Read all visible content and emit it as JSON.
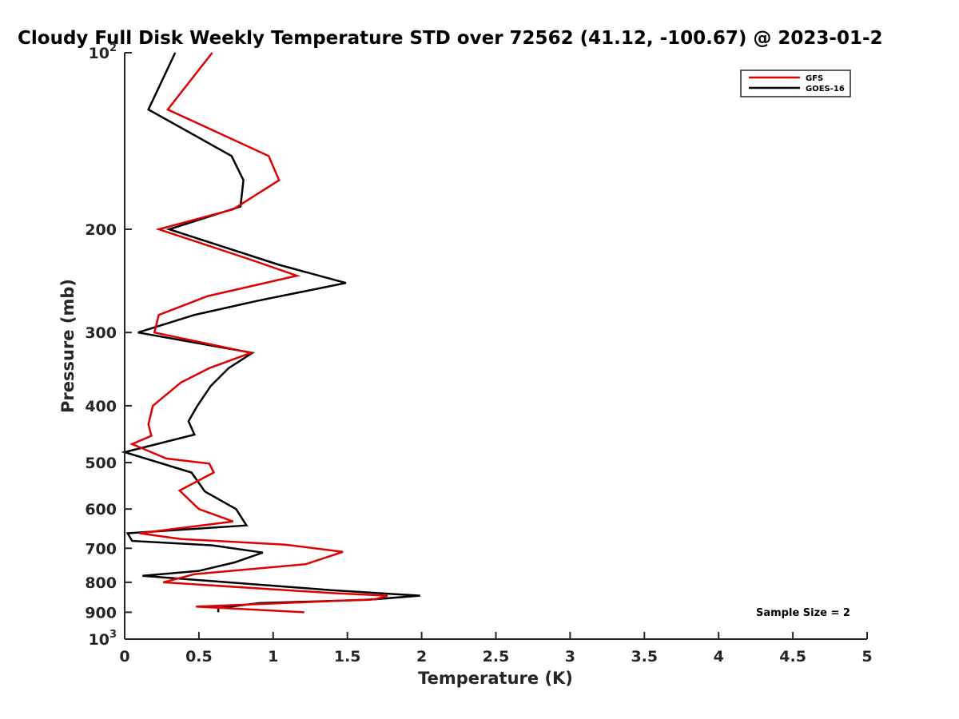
{
  "chart_data": {
    "type": "line",
    "title": "Cloudy Full Disk Weekly Temperature STD over 72562 (41.12, -100.67) @ 2023-01-2",
    "xlabel": "Temperature (K)",
    "ylabel": "Pressure (mb)",
    "xlim": [
      0,
      5
    ],
    "ylim": [
      100,
      1000
    ],
    "yscale": "log",
    "y_reversed": true,
    "x_ticks": [
      "0",
      "0.5",
      "1",
      "1.5",
      "2",
      "2.5",
      "3",
      "3.5",
      "4",
      "4.5",
      "5"
    ],
    "y_ticks": [
      {
        "value": 100,
        "base": "10",
        "exp": "2"
      },
      {
        "value": 200,
        "label": "200"
      },
      {
        "value": 300,
        "label": "300"
      },
      {
        "value": 400,
        "label": "400"
      },
      {
        "value": 500,
        "label": "500"
      },
      {
        "value": 600,
        "label": "600"
      },
      {
        "value": 700,
        "label": "700"
      },
      {
        "value": 800,
        "label": "800"
      },
      {
        "value": 900,
        "label": "900"
      },
      {
        "value": 1000,
        "base": "10",
        "exp": "3"
      }
    ],
    "grid": false,
    "legend_position": "top-right",
    "annotation": "Sample Size = 2",
    "series": [
      {
        "name": "GFS",
        "color": "#dd0000",
        "points": [
          [
            0.59,
            100
          ],
          [
            0.29,
            125
          ],
          [
            0.97,
            150
          ],
          [
            1.04,
            165
          ],
          [
            0.73,
            185
          ],
          [
            0.23,
            200
          ],
          [
            0.84,
            225
          ],
          [
            1.16,
            240
          ],
          [
            0.56,
            260
          ],
          [
            0.23,
            280
          ],
          [
            0.2,
            300
          ],
          [
            0.85,
            325
          ],
          [
            0.57,
            345
          ],
          [
            0.38,
            365
          ],
          [
            0.19,
            400
          ],
          [
            0.16,
            430
          ],
          [
            0.18,
            450
          ],
          [
            0.05,
            465
          ],
          [
            0.28,
            492
          ],
          [
            0.57,
            502
          ],
          [
            0.6,
            520
          ],
          [
            0.37,
            558
          ],
          [
            0.5,
            600
          ],
          [
            0.73,
            630
          ],
          [
            0.1,
            660
          ],
          [
            0.38,
            675
          ],
          [
            1.08,
            690
          ],
          [
            1.47,
            710
          ],
          [
            1.22,
            745
          ],
          [
            0.47,
            775
          ],
          [
            0.26,
            800
          ],
          [
            1.41,
            835
          ],
          [
            1.77,
            843
          ],
          [
            1.69,
            855
          ],
          [
            0.48,
            880
          ],
          [
            1.21,
            900
          ]
        ]
      },
      {
        "name": "GOES-16",
        "color": "#000000",
        "points": [
          [
            0.34,
            100
          ],
          [
            0.16,
            125
          ],
          [
            0.72,
            150
          ],
          [
            0.8,
            165
          ],
          [
            0.78,
            183
          ],
          [
            0.3,
            200
          ],
          [
            1.04,
            230
          ],
          [
            1.49,
            247
          ],
          [
            0.89,
            265
          ],
          [
            0.47,
            280
          ],
          [
            0.09,
            300
          ],
          [
            0.86,
            325
          ],
          [
            0.7,
            345
          ],
          [
            0.58,
            370
          ],
          [
            0.49,
            400
          ],
          [
            0.43,
            425
          ],
          [
            0.47,
            448
          ],
          [
            0.0,
            480
          ],
          [
            0.45,
            520
          ],
          [
            0.54,
            560
          ],
          [
            0.75,
            600
          ],
          [
            0.82,
            640
          ],
          [
            0.02,
            660
          ],
          [
            0.05,
            680
          ],
          [
            0.59,
            692
          ],
          [
            0.93,
            712
          ],
          [
            0.74,
            740
          ],
          [
            0.5,
            765
          ],
          [
            0.12,
            780
          ],
          [
            1.39,
            825
          ],
          [
            1.99,
            843
          ],
          [
            1.64,
            857
          ],
          [
            0.91,
            868
          ],
          [
            0.63,
            885
          ],
          [
            0.63,
            885
          ],
          [
            0.63,
            900
          ]
        ]
      }
    ]
  }
}
